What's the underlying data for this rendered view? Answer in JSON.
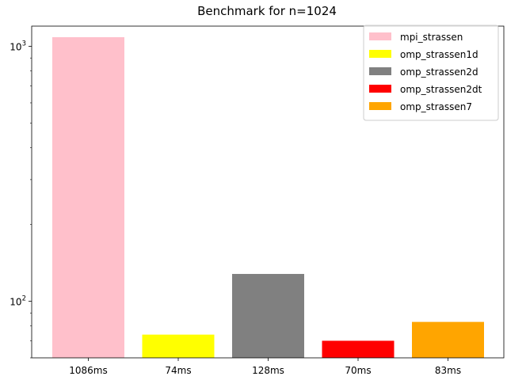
{
  "chart_data": {
    "type": "bar",
    "title": "Benchmark for n=1024",
    "xlabel": "",
    "ylabel": "",
    "yscale": "log",
    "ylim": [
      60,
      1200
    ],
    "y_major_ticks": [
      {
        "value": 100,
        "base": "10",
        "exp": "2"
      },
      {
        "value": 1000,
        "base": "10",
        "exp": "3"
      }
    ],
    "categories": [
      "1086ms",
      "74ms",
      "128ms",
      "70ms",
      "83ms"
    ],
    "series": [
      {
        "name": "mpi_strassen",
        "value": 1086,
        "color": "#ffc0cb"
      },
      {
        "name": "omp_strassen1d",
        "value": 74,
        "color": "#ffff00"
      },
      {
        "name": "omp_strassen2d",
        "value": 128,
        "color": "#808080"
      },
      {
        "name": "omp_strassen2dt",
        "value": 70,
        "color": "#ff0000"
      },
      {
        "name": "omp_strassen7",
        "value": 83,
        "color": "#ffa500"
      }
    ],
    "legend_position": "top-right",
    "grid": false
  }
}
